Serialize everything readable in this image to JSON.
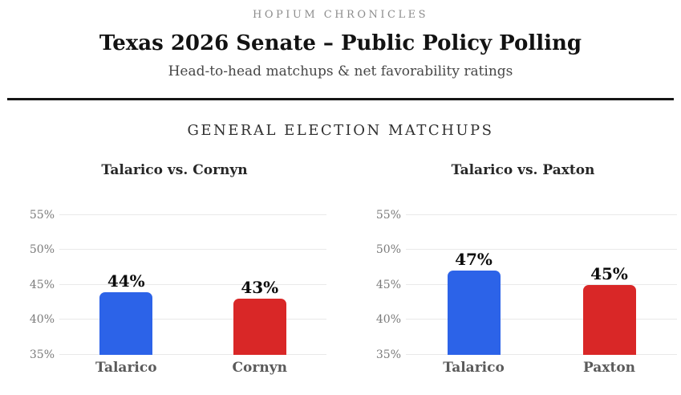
{
  "header": {
    "kicker": "HOPIUM CHRONICLES",
    "title": "Texas 2026 Senate – Public Policy Polling",
    "subtitle": "Head-to-head matchups & net favorability ratings"
  },
  "section_title": "GENERAL ELECTION MATCHUPS",
  "colors": {
    "democrat_blue": "#2c63e8",
    "republican_red": "#d92727",
    "gridline": "#e9e9e9",
    "tick_text": "#7b7b7b"
  },
  "chart_data": [
    {
      "type": "bar",
      "title": "Talarico vs. Cornyn",
      "categories": [
        "Talarico",
        "Cornyn"
      ],
      "values": [
        44,
        43
      ],
      "value_labels": [
        "44%",
        "43%"
      ],
      "bar_colors": [
        "#2c63e8",
        "#d92727"
      ],
      "ylim": [
        35,
        58.5
      ],
      "yticks": [
        35,
        40,
        45,
        50,
        55
      ],
      "ytick_labels": [
        "35%",
        "40%",
        "45%",
        "50%",
        "55%"
      ],
      "xlabel": "",
      "ylabel": "",
      "grid": true,
      "legend": "none"
    },
    {
      "type": "bar",
      "title": "Talarico vs. Paxton",
      "categories": [
        "Talarico",
        "Paxton"
      ],
      "values": [
        47,
        45
      ],
      "value_labels": [
        "47%",
        "45%"
      ],
      "bar_colors": [
        "#2c63e8",
        "#d92727"
      ],
      "ylim": [
        35,
        58.5
      ],
      "yticks": [
        35,
        40,
        45,
        50,
        55
      ],
      "ytick_labels": [
        "35%",
        "40%",
        "45%",
        "50%",
        "55%"
      ],
      "xlabel": "",
      "ylabel": "",
      "grid": true,
      "legend": "none"
    }
  ]
}
